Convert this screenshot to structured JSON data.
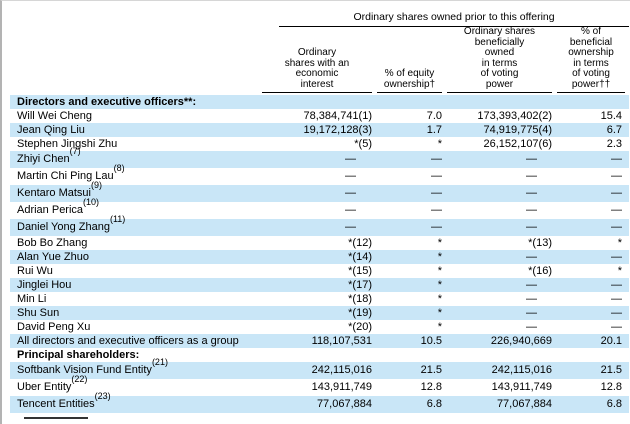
{
  "colors": {
    "row_shading": "#c9e6f7",
    "rule_color": "#000000"
  },
  "table": {
    "span_header": "Ordinary shares owned prior to this offering",
    "columns": [
      "Ordinary\nshares with an\neconomic\ninterest",
      "% of equity\nownership†",
      "Ordinary shares\nbeneficially\nowned\nin terms\nof voting\npower",
      "% of\nbeneficial\nownership\nin terms\nof voting\npower††"
    ],
    "rows": [
      {
        "label": "Directors and executive officers**:",
        "sup": "",
        "bold": true,
        "shaded": true,
        "tall": false,
        "values": [
          "",
          "",
          "",
          ""
        ]
      },
      {
        "label": "Will Wei Cheng",
        "sup": "",
        "bold": false,
        "shaded": false,
        "tall": false,
        "values": [
          "78,384,741(1)",
          "7.0",
          "173,393,402(2)",
          "15.4"
        ]
      },
      {
        "label": "Jean Qing Liu",
        "sup": "",
        "bold": false,
        "shaded": true,
        "tall": false,
        "values": [
          "19,172,128(3)",
          "1.7",
          "74,919,775(4)",
          "6.7"
        ]
      },
      {
        "label": "Stephen Jingshi Zhu",
        "sup": "",
        "bold": false,
        "shaded": false,
        "tall": false,
        "values": [
          "*(5)",
          "*",
          "26,152,107(6)",
          "2.3"
        ]
      },
      {
        "label": "Zhiyi Chen",
        "sup": "(7)",
        "bold": false,
        "shaded": true,
        "tall": true,
        "values": [
          "—",
          "—",
          "—",
          "—"
        ]
      },
      {
        "label": "Martin Chi Ping Lau",
        "sup": "(8)",
        "bold": false,
        "shaded": false,
        "tall": true,
        "values": [
          "—",
          "—",
          "—",
          "—"
        ]
      },
      {
        "label": "Kentaro Matsui",
        "sup": "(9)",
        "bold": false,
        "shaded": true,
        "tall": true,
        "values": [
          "—",
          "—",
          "—",
          "—"
        ]
      },
      {
        "label": "Adrian Perica",
        "sup": "(10)",
        "bold": false,
        "shaded": false,
        "tall": true,
        "values": [
          "—",
          "—",
          "—",
          "—"
        ]
      },
      {
        "label": "Daniel Yong Zhang",
        "sup": "(11)",
        "bold": false,
        "shaded": true,
        "tall": true,
        "values": [
          "—",
          "—",
          "—",
          "—"
        ]
      },
      {
        "label": "Bob Bo Zhang",
        "sup": "",
        "bold": false,
        "shaded": false,
        "tall": false,
        "values": [
          "*(12)",
          "*",
          "*(13)",
          "*"
        ]
      },
      {
        "label": "Alan Yue Zhuo",
        "sup": "",
        "bold": false,
        "shaded": true,
        "tall": false,
        "values": [
          "*(14)",
          "*",
          "—",
          "—"
        ]
      },
      {
        "label": "Rui Wu",
        "sup": "",
        "bold": false,
        "shaded": false,
        "tall": false,
        "values": [
          "*(15)",
          "*",
          "*(16)",
          "*"
        ]
      },
      {
        "label": "Jinglei Hou",
        "sup": "",
        "bold": false,
        "shaded": true,
        "tall": false,
        "values": [
          "*(17)",
          "*",
          "—",
          "—"
        ]
      },
      {
        "label": "Min Li",
        "sup": "",
        "bold": false,
        "shaded": false,
        "tall": false,
        "values": [
          "*(18)",
          "*",
          "—",
          "—"
        ]
      },
      {
        "label": "Shu Sun",
        "sup": "",
        "bold": false,
        "shaded": true,
        "tall": false,
        "values": [
          "*(19)",
          "*",
          "—",
          "—"
        ]
      },
      {
        "label": "David Peng Xu",
        "sup": "",
        "bold": false,
        "shaded": false,
        "tall": false,
        "values": [
          "*(20)",
          "*",
          "—",
          "—"
        ]
      },
      {
        "label": "All directors and executive officers as a group",
        "sup": "",
        "bold": false,
        "shaded": true,
        "tall": false,
        "values": [
          "118,107,531",
          "10.5",
          "226,940,669",
          "20.1"
        ]
      },
      {
        "label": "Principal shareholders:",
        "sup": "",
        "bold": true,
        "shaded": false,
        "tall": false,
        "values": [
          "",
          "",
          "",
          ""
        ]
      },
      {
        "label": "Softbank Vision Fund Entity",
        "sup": "(21)",
        "bold": false,
        "shaded": true,
        "tall": true,
        "values": [
          "242,115,016",
          "21.5",
          "242,115,016",
          "21.5"
        ]
      },
      {
        "label": "Uber Entity",
        "sup": "(22)",
        "bold": false,
        "shaded": false,
        "tall": true,
        "values": [
          "143,911,749",
          "12.8",
          "143,911,749",
          "12.8"
        ]
      },
      {
        "label": "Tencent Entities",
        "sup": "(23)",
        "bold": false,
        "shaded": true,
        "tall": true,
        "values": [
          "77,067,884",
          "6.8",
          "77,067,884",
          "6.8"
        ]
      }
    ]
  }
}
